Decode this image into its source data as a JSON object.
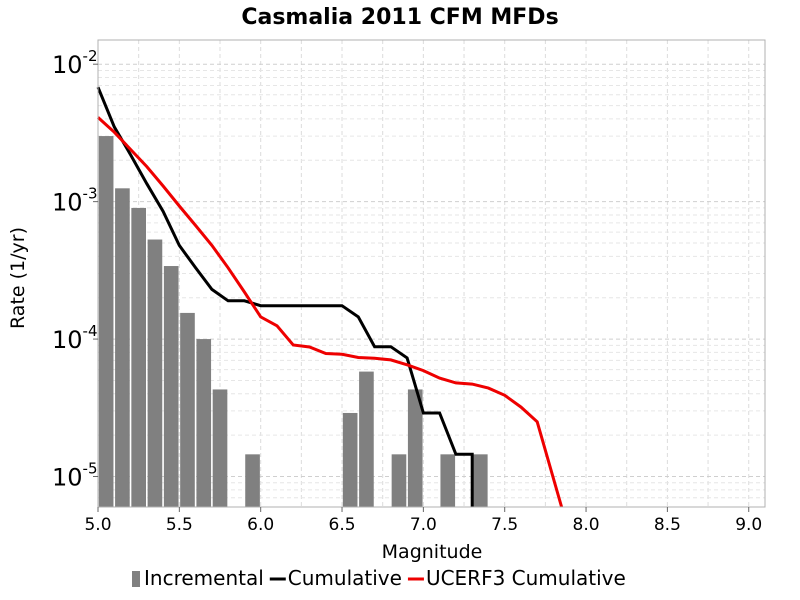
{
  "chart_data": {
    "type": "bar+line",
    "title": "Casmalia 2011 CFM MFDs",
    "xlabel": "Magnitude",
    "ylabel": "Rate (1/yr)",
    "xlim": [
      5.0,
      9.1
    ],
    "ylim": [
      6e-06,
      0.015
    ],
    "yscale": "log",
    "grid": true,
    "legend_position": "bottom",
    "x_ticks": [
      "5.0",
      "5.5",
      "6.0",
      "6.5",
      "7.0",
      "7.5",
      "8.0",
      "8.5",
      "9.0"
    ],
    "y_ticks": [
      {
        "base": "10",
        "exp": "-5",
        "value": 1e-05
      },
      {
        "base": "10",
        "exp": "-4",
        "value": 0.0001
      },
      {
        "base": "10",
        "exp": "-3",
        "value": 0.001
      },
      {
        "base": "10",
        "exp": "-2",
        "value": 0.01
      }
    ],
    "series": [
      {
        "name": "Incremental",
        "kind": "bar",
        "color": "#808080",
        "x": [
          5.05,
          5.15,
          5.25,
          5.35,
          5.45,
          5.55,
          5.65,
          5.75,
          5.95,
          6.55,
          6.65,
          6.85,
          6.95,
          7.15,
          7.35
        ],
        "values": [
          0.003,
          0.00125,
          0.0009,
          0.00053,
          0.00034,
          0.000155,
          0.0001,
          4.3e-05,
          1.45e-05,
          2.9e-05,
          5.8e-05,
          1.45e-05,
          4.3e-05,
          1.45e-05,
          1.45e-05
        ]
      },
      {
        "name": "Cumulative",
        "kind": "line",
        "color": "#000000",
        "x": [
          5.0,
          5.1,
          5.2,
          5.3,
          5.4,
          5.5,
          5.6,
          5.7,
          5.8,
          5.9,
          6.0,
          6.1,
          6.2,
          6.3,
          6.4,
          6.5,
          6.6,
          6.7,
          6.8,
          6.9,
          7.0,
          7.1,
          7.2,
          7.3,
          7.3
        ],
        "values": [
          0.0068,
          0.0035,
          0.0022,
          0.00135,
          0.00085,
          0.00048,
          0.00033,
          0.00023,
          0.00019,
          0.00019,
          0.000175,
          0.000175,
          0.000175,
          0.000175,
          0.000175,
          0.000175,
          0.000145,
          8.8e-05,
          8.8e-05,
          7.3e-05,
          2.9e-05,
          2.9e-05,
          1.45e-05,
          1.45e-05,
          6e-06
        ]
      },
      {
        "name": "UCERF3 Cumulative",
        "kind": "line",
        "color": "#ee0000",
        "x": [
          5.0,
          5.1,
          5.2,
          5.3,
          5.4,
          5.5,
          5.6,
          5.7,
          5.8,
          5.9,
          6.0,
          6.1,
          6.2,
          6.3,
          6.4,
          6.5,
          6.6,
          6.7,
          6.8,
          6.9,
          7.0,
          7.1,
          7.2,
          7.3,
          7.4,
          7.5,
          7.6,
          7.7,
          7.85
        ],
        "values": [
          0.0041,
          0.0032,
          0.0024,
          0.0018,
          0.0013,
          0.00093,
          0.00067,
          0.00048,
          0.00033,
          0.00022,
          0.000145,
          0.000125,
          9.05e-05,
          8.75e-05,
          7.85e-05,
          7.75e-05,
          7.35e-05,
          7.25e-05,
          7.05e-05,
          6.5e-05,
          5.9e-05,
          5.2e-05,
          4.8e-05,
          4.7e-05,
          4.4e-05,
          3.9e-05,
          3.2e-05,
          2.5e-05,
          6e-06
        ]
      }
    ]
  }
}
